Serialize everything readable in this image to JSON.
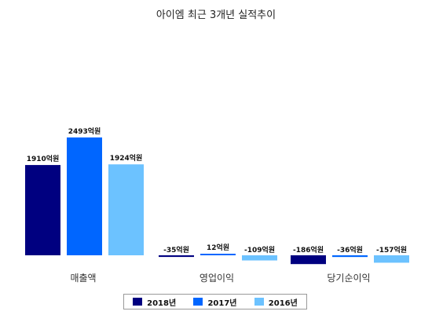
{
  "chart_data": {
    "type": "bar",
    "title": "아이엠 최근 3개년 실적추이",
    "xlabel": "",
    "ylabel": "",
    "categories": [
      "매출액",
      "영업이익",
      "당기순이익"
    ],
    "legend_position": "bottom",
    "grid": false,
    "series": [
      {
        "name": "2018년",
        "color": "#000080",
        "values": [
          1910,
          -35,
          -186
        ],
        "labels": [
          "1910억원",
          "-35억원",
          "-186억원"
        ]
      },
      {
        "name": "2017년",
        "color": "#0066FF",
        "values": [
          2493,
          12,
          -36
        ],
        "labels": [
          "2493억원",
          "12억원",
          "-36억원"
        ]
      },
      {
        "name": "2016년",
        "color": "#6CC2FF",
        "values": [
          1924,
          -109,
          -157
        ],
        "labels": [
          "1924억원",
          "-109억원",
          "-157억원"
        ]
      }
    ]
  }
}
